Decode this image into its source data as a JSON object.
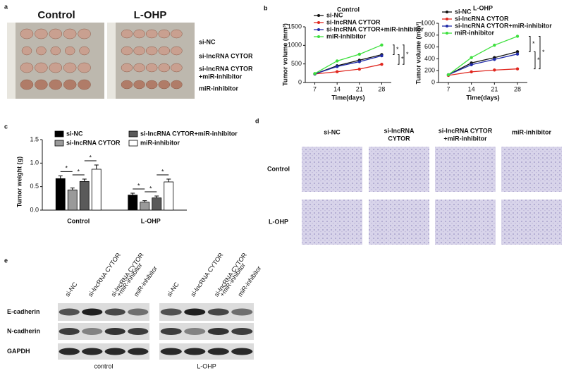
{
  "panel_a": {
    "letter": "a",
    "groups": [
      "Control",
      "L-OHP"
    ],
    "rows": [
      [
        "si-NC"
      ],
      [
        "si-lncRNA CYTOR"
      ],
      [
        "si-lncRNA CYTOR",
        "+miR-inhibitor"
      ],
      [
        "miR-inhibitor"
      ]
    ]
  },
  "panel_b": {
    "letter": "b"
  },
  "panel_c": {
    "letter": "c"
  },
  "chart_data": [
    {
      "type": "line",
      "title": "Control",
      "x_label": "Time(days)",
      "y_label": "Tumor volume (mm³)",
      "x": [
        7,
        14,
        21,
        28
      ],
      "xlim": [
        4,
        31
      ],
      "xticks": [
        7,
        14,
        21,
        28
      ],
      "ylim": [
        0,
        1500
      ],
      "yticks": [
        0,
        500,
        1000,
        1500
      ],
      "legend": "upper left",
      "annotations": [
        "*",
        "*",
        "*"
      ],
      "series": [
        {
          "name": "si-NC",
          "color": "#111111",
          "values": [
            230,
            450,
            600,
            750
          ]
        },
        {
          "name": "si-lncRNA CYTOR",
          "color": "#e0261e",
          "values": [
            230,
            290,
            360,
            490
          ]
        },
        {
          "name": "si-lncRNA CYTOR+miR-inhibitor",
          "color": "#1f2aa8",
          "values": [
            230,
            430,
            560,
            720
          ]
        },
        {
          "name": "miR-inhibitor",
          "color": "#3ee03e",
          "values": [
            240,
            580,
            760,
            1010
          ]
        }
      ]
    },
    {
      "type": "line",
      "title": "L-OHP",
      "x_label": "Time(days)",
      "y_label": "Tumor volume (mm³)",
      "x": [
        7,
        14,
        21,
        28
      ],
      "xlim": [
        4,
        31
      ],
      "xticks": [
        7,
        14,
        21,
        28
      ],
      "ylim": [
        0,
        1000
      ],
      "yticks": [
        0,
        200,
        400,
        600,
        800,
        1000
      ],
      "legend": "upper left",
      "annotations": [
        "*",
        "*",
        "*"
      ],
      "series": [
        {
          "name": "si-NC",
          "color": "#111111",
          "values": [
            130,
            330,
            420,
            520
          ]
        },
        {
          "name": "si-lncRNA CYTOR",
          "color": "#e0261e",
          "values": [
            120,
            180,
            210,
            230
          ]
        },
        {
          "name": "si-lncRNA CYTOR+miR-inhibitor",
          "color": "#1f2aa8",
          "values": [
            130,
            300,
            390,
            480
          ]
        },
        {
          "name": "miR-inhibitor",
          "color": "#3ee03e",
          "values": [
            130,
            420,
            630,
            780
          ]
        }
      ]
    },
    {
      "type": "bar",
      "y_label": "Tumor weight (g)",
      "categories": [
        "Control",
        "L-OHP"
      ],
      "ylim": [
        0,
        1.5
      ],
      "yticks": [
        {
          "value": 0,
          "label": "0.0"
        },
        {
          "value": 0.5,
          "label": "0.5"
        },
        {
          "value": 1,
          "label": "1.0"
        },
        {
          "value": 1.5,
          "label": "1.5"
        }
      ],
      "annotations": [
        "*",
        "*",
        "*"
      ],
      "series": [
        {
          "name": "si-NC",
          "color": "#000000",
          "values": [
            0.67,
            0.32
          ],
          "errors": [
            0.06,
            0.04
          ]
        },
        {
          "name": "si-lncRNA CYTOR",
          "color": "#9a9a9a",
          "values": [
            0.43,
            0.17
          ],
          "errors": [
            0.04,
            0.03
          ]
        },
        {
          "name": "si-lncRNA CYTOR+miR-inhibitor",
          "color": "#5a5a5a",
          "values": [
            0.61,
            0.26
          ],
          "errors": [
            0.05,
            0.04
          ]
        },
        {
          "name": "miR-inhibitor",
          "color": "#ffffff",
          "values": [
            0.87,
            0.6
          ],
          "errors": [
            0.09,
            0.06
          ]
        }
      ]
    }
  ],
  "panel_d": {
    "letter": "d",
    "columns": [
      [
        "si-NC"
      ],
      [
        "si-lncRNA",
        "CYTOR"
      ],
      [
        "si-lncRNA CYTOR",
        "+miR-inhibitor"
      ],
      [
        "miR-inhibitor"
      ]
    ],
    "rows": [
      "Control",
      "L-OHP"
    ]
  },
  "panel_e": {
    "letter": "e",
    "lanes": [
      [
        "si-NC"
      ],
      [
        "si-lncRNA CYTOR"
      ],
      [
        "si-lncRNA CYTOR",
        "+miR-inhibitor"
      ],
      [
        "miR-inhibitor"
      ]
    ],
    "proteins": [
      "E-cadherin",
      "N-cadherin",
      "GAPDH"
    ],
    "groups": [
      "control",
      "L-OHP"
    ]
  }
}
